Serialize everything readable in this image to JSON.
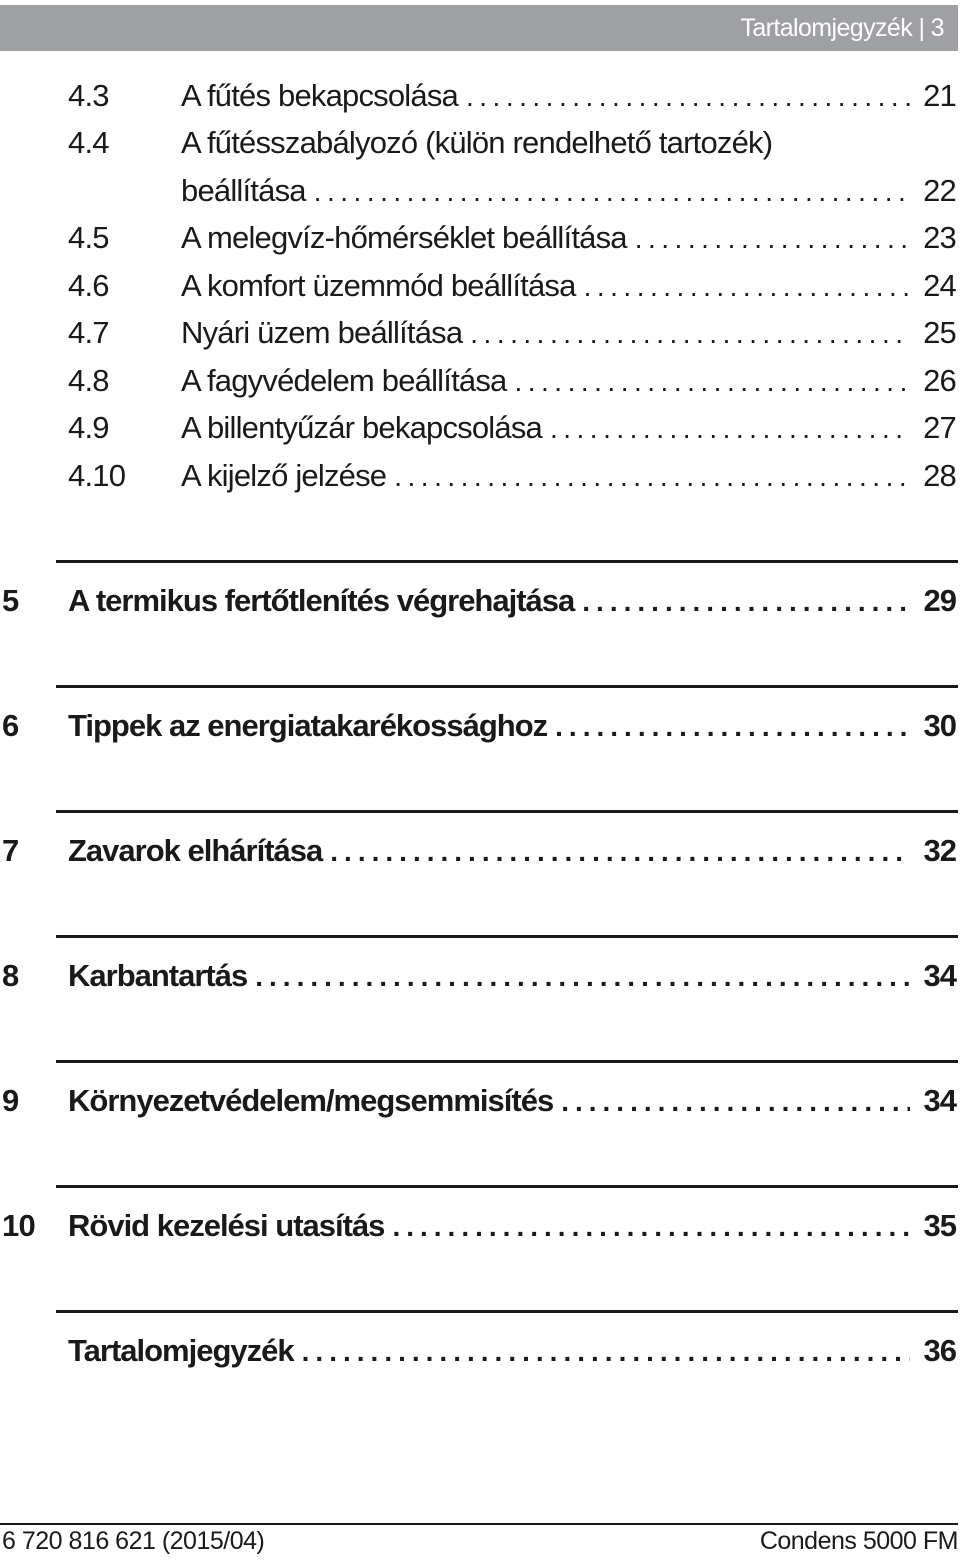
{
  "header": {
    "text": "Tartalomjegyzék | 3"
  },
  "subentries": [
    {
      "num": "4.3",
      "title": "A fűtés bekapcsolása",
      "page": "21"
    },
    {
      "num": "4.4",
      "title": "A fűtésszabályozó (külön rendelhető tartozék)",
      "title2": "beállítása",
      "page": "22"
    },
    {
      "num": "4.5",
      "title": "A melegvíz-hőmérséklet beállítása",
      "page": "23"
    },
    {
      "num": "4.6",
      "title": "A komfort üzemmód beállítása",
      "page": "24"
    },
    {
      "num": "4.7",
      "title": "Nyári üzem beállítása",
      "page": "25"
    },
    {
      "num": "4.8",
      "title": "A fagyvédelem beállítása",
      "page": "26"
    },
    {
      "num": "4.9",
      "title": "A billentyűzár bekapcsolása",
      "page": "27"
    },
    {
      "num": "4.10",
      "title": "A kijelző jelzése",
      "page": "28"
    }
  ],
  "chapters": [
    {
      "num": "5",
      "title": "A termikus fertőtlenítés végrehajtása",
      "page": "29"
    },
    {
      "num": "6",
      "title": "Tippek az energiatakarékossághoz",
      "page": "30"
    },
    {
      "num": "7",
      "title": "Zavarok elhárítása",
      "page": "32"
    },
    {
      "num": "8",
      "title": "Karbantartás",
      "page": "34"
    },
    {
      "num": "9",
      "title": "Környezetvédelem/megsemmisítés",
      "page": "34"
    },
    {
      "num": "10",
      "title": "Rövid kezelési utasítás",
      "page": "35"
    },
    {
      "num": "",
      "title": "Tartalomjegyzék",
      "page": "36"
    }
  ],
  "footer": {
    "left": "6 720 816 621 (2015/04)",
    "right": "Condens 5000 FM"
  }
}
